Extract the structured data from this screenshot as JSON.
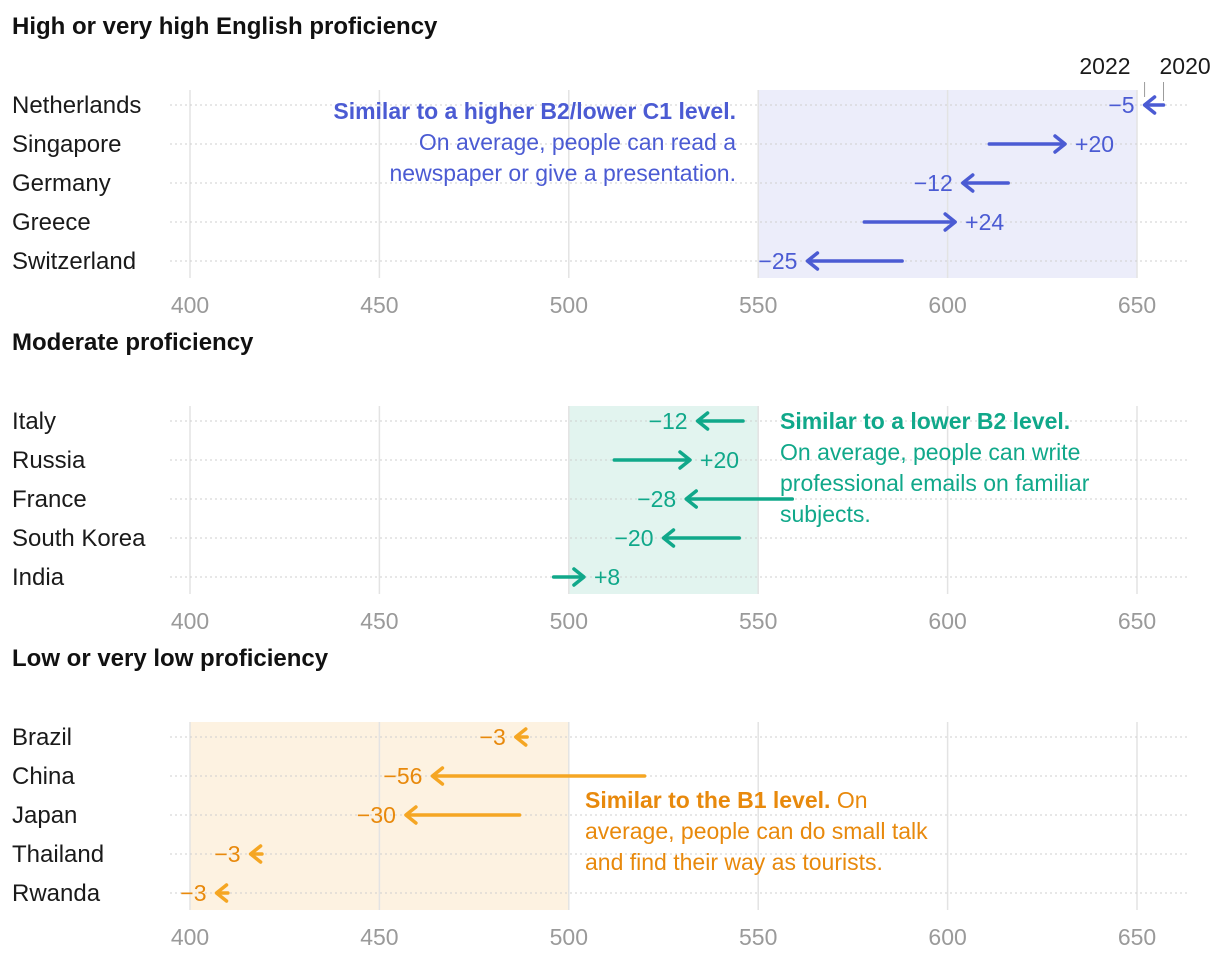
{
  "chart_data": {
    "type": "arrow-dot",
    "x_range": [
      400,
      650
    ],
    "ticks": [
      400,
      450,
      500,
      550,
      600,
      650
    ],
    "year_from": "2020",
    "year_to": "2022",
    "panels": [
      {
        "title": "High or very high English proficiency",
        "color": "#4b5bd3",
        "band_color": "#ecedfa",
        "band": [
          550,
          650
        ],
        "note_bold": "Similar to a higher B2/lower C1 level.",
        "note_text": "On average, people can read a newspaper or give a presentation.",
        "rows": [
          {
            "country": "Netherlands",
            "from": 657,
            "to": 652,
            "delta": "−5"
          },
          {
            "country": "Singapore",
            "from": 611,
            "to": 631,
            "delta": "+20"
          },
          {
            "country": "Germany",
            "from": 616,
            "to": 604,
            "delta": "−12"
          },
          {
            "country": "Greece",
            "from": 578,
            "to": 602,
            "delta": "+24"
          },
          {
            "country": "Switzerland",
            "from": 588,
            "to": 563,
            "delta": "−25"
          }
        ]
      },
      {
        "title": "Moderate proficiency",
        "color": "#10a88a",
        "band_color": "#e2f4ef",
        "band": [
          500,
          550
        ],
        "note_bold": "Similar to a lower B2 level.",
        "note_text": "On average, people can write professional emails on familiar subjects.",
        "rows": [
          {
            "country": "Italy",
            "from": 546,
            "to": 534,
            "delta": "−12"
          },
          {
            "country": "Russia",
            "from": 512,
            "to": 532,
            "delta": "+20"
          },
          {
            "country": "France",
            "from": 559,
            "to": 531,
            "delta": "−28"
          },
          {
            "country": "South Korea",
            "from": 545,
            "to": 525,
            "delta": "−20"
          },
          {
            "country": "India",
            "from": 496,
            "to": 504,
            "delta": "+8"
          }
        ]
      },
      {
        "title": "Low or very low proficiency",
        "color": "#f5a623",
        "band_color": "#fdf2e1",
        "text_color": "#e8890c",
        "band": [
          400,
          500
        ],
        "note_bold": "Similar to the B1 level.",
        "note_text": "On average, people can do small talk and find their way as tourists.",
        "rows": [
          {
            "country": "Brazil",
            "from": 489,
            "to": 486,
            "delta": "−3"
          },
          {
            "country": "China",
            "from": 520,
            "to": 464,
            "delta": "−56"
          },
          {
            "country": "Japan",
            "from": 487,
            "to": 457,
            "delta": "−30"
          },
          {
            "country": "Thailand",
            "from": 419,
            "to": 416,
            "delta": "−3"
          },
          {
            "country": "Rwanda",
            "from": 410,
            "to": 407,
            "delta": "−3"
          }
        ]
      }
    ]
  }
}
